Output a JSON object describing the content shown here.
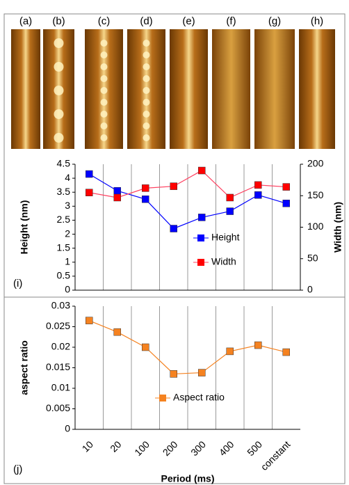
{
  "panels": {
    "labels": [
      "(a)",
      "(b)",
      "(c)",
      "(d)",
      "(e)",
      "(f)",
      "(g)",
      "(h)"
    ]
  },
  "chart_data": [
    {
      "type": "line",
      "panel_label": "(i)",
      "ylabel": "Height (nm)",
      "y2label": "Width (nm)",
      "ylim": [
        0,
        4.5
      ],
      "yticks": [
        0,
        0.5,
        1,
        1.5,
        2,
        2.5,
        3,
        3.5,
        4,
        4.5
      ],
      "y2lim": [
        0,
        200
      ],
      "y2ticks": [
        0,
        50,
        100,
        150,
        200
      ],
      "series": [
        {
          "name": "Height",
          "color": "#0000ff",
          "values": [
            4.15,
            3.55,
            3.25,
            2.2,
            2.6,
            2.82,
            3.4,
            3.1
          ]
        },
        {
          "name": "Width",
          "color": "#ff0000",
          "axis": "y2",
          "values": [
            155,
            147,
            162,
            165,
            190,
            147,
            167,
            164
          ]
        }
      ]
    },
    {
      "type": "line",
      "panel_label": "(j)",
      "ylabel": "aspect ratio",
      "xlabel": "Period (ms)",
      "categories": [
        "10",
        "20",
        "100",
        "200",
        "300",
        "400",
        "500",
        "constant"
      ],
      "ylim": [
        0,
        0.03
      ],
      "yticks": [
        0,
        0.005,
        0.01,
        0.015,
        0.02,
        0.025,
        0.03
      ],
      "series": [
        {
          "name": "Aspect ratio",
          "color": "#f58220",
          "values": [
            0.0265,
            0.0237,
            0.02,
            0.0135,
            0.0138,
            0.019,
            0.0205,
            0.0188
          ]
        }
      ]
    }
  ]
}
